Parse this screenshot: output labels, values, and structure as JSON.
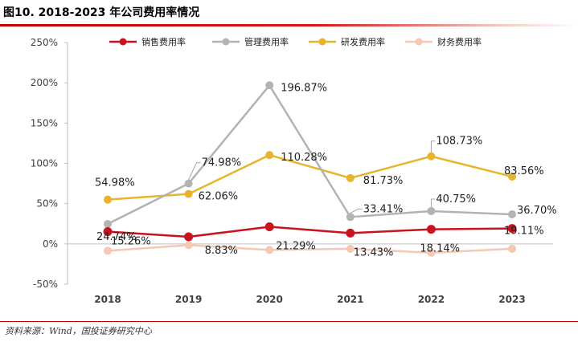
{
  "title": "图10. 2018-2023 年公司费用率情况",
  "source": "资料来源：Wind，国投证券研究中心",
  "chart_data": {
    "type": "line",
    "categories": [
      "2018",
      "2019",
      "2020",
      "2021",
      "2022",
      "2023"
    ],
    "ylim": [
      -50,
      250
    ],
    "yticks": [
      -50,
      0,
      50,
      100,
      150,
      200,
      250
    ],
    "ytick_labels": [
      "-50%",
      "0%",
      "50%",
      "100%",
      "150%",
      "200%",
      "250%"
    ],
    "legend_position": "top",
    "grid": false,
    "series": [
      {
        "name": "销售费用率",
        "color": "#c8141e",
        "values": [
          15.26,
          8.83,
          21.29,
          13.43,
          18.14,
          19.11
        ],
        "labels": [
          "15.26%",
          "8.83%",
          "21.29%",
          "13.43%",
          "18.14%",
          "19.11%"
        ]
      },
      {
        "name": "管理费用率",
        "color": "#b3b3b3",
        "values": [
          24.74,
          74.98,
          196.87,
          33.41,
          40.75,
          36.7
        ],
        "labels": [
          "24.74%",
          "74.98%",
          "196.87%",
          "33.41%",
          "40.75%",
          "36.70%"
        ]
      },
      {
        "name": "研发费用率",
        "color": "#e8b42c",
        "values": [
          54.98,
          62.06,
          110.28,
          81.73,
          108.73,
          83.56
        ],
        "labels": [
          "54.98%",
          "62.06%",
          "110.28%",
          "81.73%",
          "108.73%",
          "83.56%"
        ]
      },
      {
        "name": "财务费用率",
        "color": "#f5c8b3",
        "values": [
          -8.5,
          -1.5,
          -7.5,
          -6.0,
          -11.0,
          -6.0
        ],
        "labels": []
      }
    ]
  }
}
